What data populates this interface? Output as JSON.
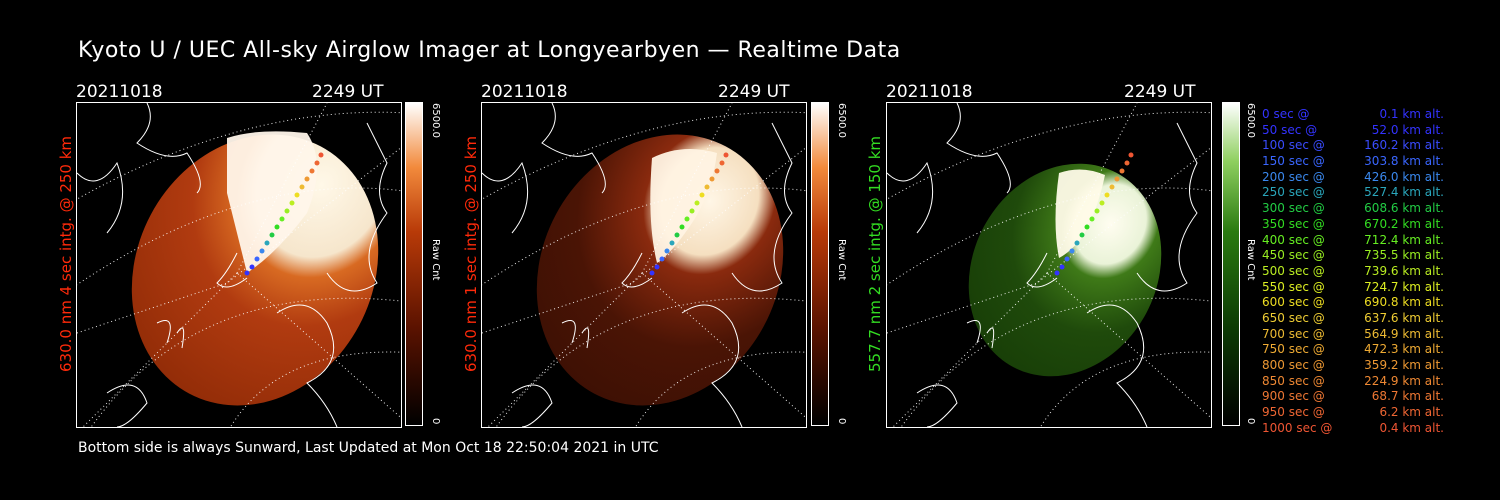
{
  "title": "Kyoto U / UEC All-sky Airglow Imager at Longyearbyen — Realtime Data",
  "panels": [
    {
      "date": "20211018",
      "time": "2249 UT",
      "label": "630.0 nm 4 sec intg. @ 250 km",
      "label_color": "#ff2a0a",
      "colorbar_max": "6500.0",
      "colorbar_min": "0",
      "colorbar_unit": "Raw Cnt",
      "colormap": "red"
    },
    {
      "date": "20211018",
      "time": "2249 UT",
      "label": "630.0 nm 1 sec intg. @ 250 km",
      "label_color": "#ff2a0a",
      "colorbar_max": "6500.0",
      "colorbar_min": "0",
      "colorbar_unit": "Raw Cnt",
      "colormap": "red"
    },
    {
      "date": "20211018",
      "time": "2249 UT",
      "label": "557.7 nm 2 sec intg. @ 150 km",
      "label_color": "#33dd22",
      "colorbar_max": "6500.0",
      "colorbar_min": "0",
      "colorbar_unit": "Raw Cnt",
      "colormap": "green"
    }
  ],
  "legend": [
    {
      "sec": "0 sec @",
      "alt": "0.1 km alt.",
      "color": "#3333ff"
    },
    {
      "sec": "50 sec @",
      "alt": "52.0 km alt.",
      "color": "#3333ff"
    },
    {
      "sec": "100 sec @",
      "alt": "160.2 km alt.",
      "color": "#3a4cff"
    },
    {
      "sec": "150 sec @",
      "alt": "303.8 km alt.",
      "color": "#3a66ff"
    },
    {
      "sec": "200 sec @",
      "alt": "426.0 km alt.",
      "color": "#3a88ee"
    },
    {
      "sec": "250 sec @",
      "alt": "527.4 km alt.",
      "color": "#2aa6bb"
    },
    {
      "sec": "300 sec @",
      "alt": "608.6 km alt.",
      "color": "#22cc44"
    },
    {
      "sec": "350 sec @",
      "alt": "670.2 km alt.",
      "color": "#33dd22"
    },
    {
      "sec": "400 sec @",
      "alt": "712.4 km alt.",
      "color": "#66ee22"
    },
    {
      "sec": "450 sec @",
      "alt": "735.5 km alt.",
      "color": "#99ee22"
    },
    {
      "sec": "500 sec @",
      "alt": "739.6 km alt.",
      "color": "#bbee22"
    },
    {
      "sec": "550 sec @",
      "alt": "724.7 km alt.",
      "color": "#ddee22"
    },
    {
      "sec": "600 sec @",
      "alt": "690.8 km alt.",
      "color": "#eedd22"
    },
    {
      "sec": "650 sec @",
      "alt": "637.6 km alt.",
      "color": "#eecc33"
    },
    {
      "sec": "700 sec @",
      "alt": "564.9 km alt.",
      "color": "#eebb33"
    },
    {
      "sec": "750 sec @",
      "alt": "472.3 km alt.",
      "color": "#eeaa33"
    },
    {
      "sec": "800 sec @",
      "alt": "359.2 km alt.",
      "color": "#ee9933"
    },
    {
      "sec": "850 sec @",
      "alt": "224.9 km alt.",
      "color": "#ee8833"
    },
    {
      "sec": "900 sec @",
      "alt": "68.7 km alt.",
      "color": "#ee7733"
    },
    {
      "sec": "950 sec @",
      "alt": "6.2 km alt.",
      "color": "#ee6633"
    },
    {
      "sec": "1000 sec @",
      "alt": "0.4 km alt.",
      "color": "#ee5533"
    }
  ],
  "footer": "Bottom side is always Sunward, Last Updated at Mon Oct 18 22:50:04 2021 in UTC"
}
